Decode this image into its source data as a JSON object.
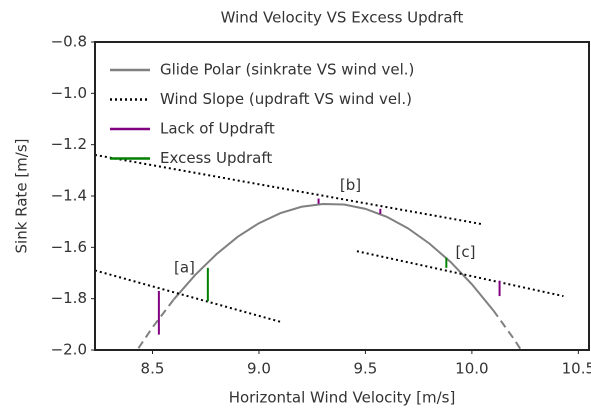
{
  "chart_data": {
    "type": "line",
    "title": "Wind Velocity VS Excess Updraft",
    "xlabel": "Horizontal Wind Velocity [m/s]",
    "ylabel": "Sink Rate [m/s]",
    "xlim": [
      8.23,
      10.55
    ],
    "ylim": [
      -2.0,
      -0.8
    ],
    "xticks": [
      8.5,
      {
        "value": 9,
        "label": "9.0"
      },
      9.5,
      {
        "value": 10,
        "label": "10.0"
      },
      10.5
    ],
    "yticks": [
      {
        "value": -2.0,
        "label": "−2.0"
      },
      {
        "value": -1.8,
        "label": "−1.8"
      },
      {
        "value": -1.6,
        "label": "−1.6"
      },
      {
        "value": -1.4,
        "label": "−1.4"
      },
      {
        "value": -1.2,
        "label": "−1.2"
      },
      {
        "value": -1.0,
        "label": "−1.0"
      },
      {
        "value": -0.8,
        "label": "−0.8"
      }
    ],
    "legend": "upper left",
    "polar": {
      "name": "Glide Polar (sinkrate VS wind vel.)",
      "color": "#808080",
      "solid_x": [
        8.62,
        10.12
      ],
      "x": [
        8.4,
        8.5,
        8.6,
        8.7,
        8.8,
        8.9,
        9.0,
        9.1,
        9.2,
        9.3,
        9.4,
        9.5,
        9.6,
        9.7,
        9.8,
        9.9,
        10.0,
        10.1,
        10.2,
        10.3
      ],
      "values": [
        -2.035,
        -1.912,
        -1.803,
        -1.708,
        -1.627,
        -1.559,
        -1.506,
        -1.467,
        -1.442,
        -1.431,
        -1.433,
        -1.45,
        -1.481,
        -1.526,
        -1.585,
        -1.657,
        -1.744,
        -1.845,
        -1.96,
        -2.089
      ]
    },
    "wind_slope": {
      "name": "Wind Slope (updraft VS wind vel.)",
      "color": "#000000",
      "lines": [
        {
          "x": [
            8.23,
            9.1
          ],
          "values": [
            -1.69,
            -1.89
          ]
        },
        {
          "x": [
            8.23,
            10.05
          ],
          "values": [
            -1.24,
            -1.51
          ]
        },
        {
          "x": [
            9.46,
            10.43
          ],
          "values": [
            -1.615,
            -1.79
          ]
        }
      ]
    },
    "series": [
      {
        "name": "Lack of Updraft",
        "color": "#800080",
        "x": [
          8.53,
          9.28,
          9.57,
          10.13
        ],
        "high": [
          -1.77,
          -1.41,
          -1.45,
          -1.73
        ],
        "low": [
          -1.94,
          -1.43,
          -1.47,
          -1.79
        ]
      },
      {
        "name": "Excess Updraft",
        "color": "#008000",
        "x": [
          8.76,
          9.88
        ],
        "high": [
          -1.68,
          -1.64
        ],
        "low": [
          -1.81,
          -1.68
        ]
      }
    ],
    "annotations": [
      {
        "text": "[a]",
        "x": 8.65,
        "y": -1.68
      },
      {
        "text": "[b]",
        "x": 9.43,
        "y": -1.36
      },
      {
        "text": "[c]",
        "x": 9.97,
        "y": -1.62
      }
    ]
  }
}
